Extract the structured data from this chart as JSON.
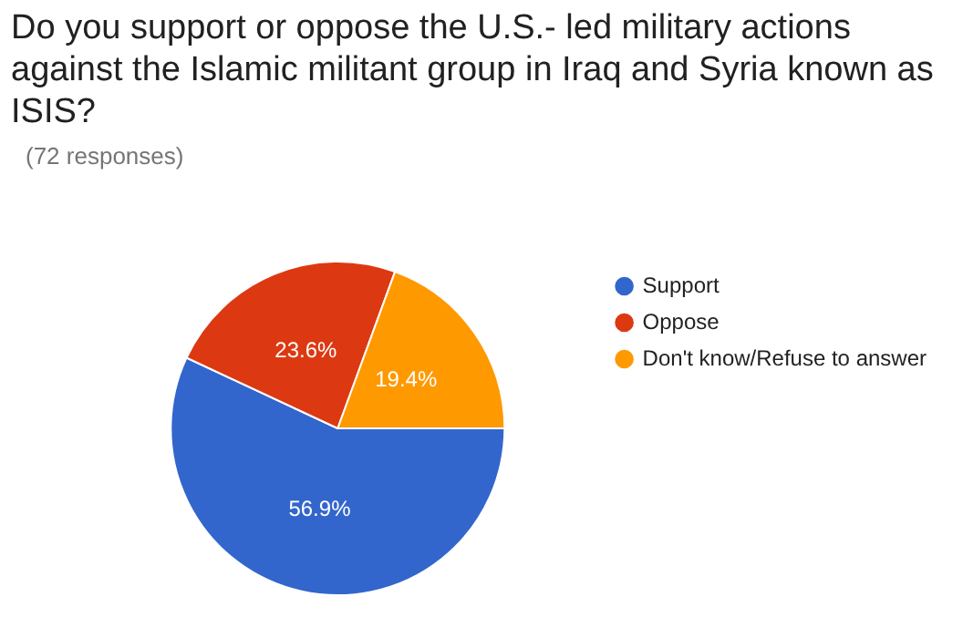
{
  "chart_data": {
    "type": "pie",
    "title": "Do you support or oppose the U.S.- led military actions against the Islamic militant group in Iraq and Syria known as ISIS?",
    "subtitle": "(72 responses)",
    "categories": [
      "Support",
      "Oppose",
      "Don't know/Refuse to answer"
    ],
    "values": [
      56.9,
      23.6,
      19.4
    ],
    "colors": [
      "#3366cc",
      "#dc3912",
      "#ff9900"
    ],
    "value_labels": [
      "56.9%",
      "23.6%",
      "19.4%"
    ],
    "legend": "right"
  }
}
